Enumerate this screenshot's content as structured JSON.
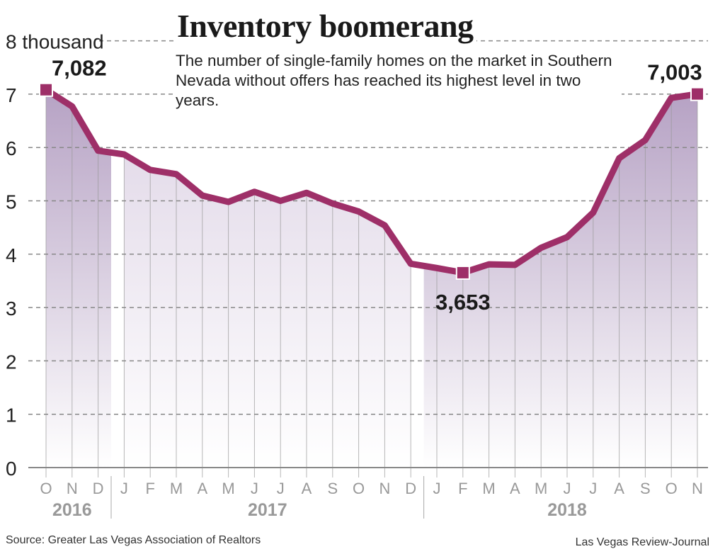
{
  "chart_data": {
    "type": "area",
    "title": "Inventory boomerang",
    "subtitle": "The number of single-family homes on the market in Southern Nevada without offers has reached its highest level in two years.",
    "ylabel": "",
    "unit_label": "8 thousand",
    "ylim": [
      0,
      8
    ],
    "yticks": [
      "0",
      "1",
      "2",
      "3",
      "4",
      "5",
      "6",
      "7",
      "8 thousand"
    ],
    "grid": "horizontal dashed",
    "categories": [
      "O",
      "N",
      "D",
      "J",
      "F",
      "M",
      "A",
      "M",
      "J",
      "J",
      "A",
      "S",
      "O",
      "N",
      "D",
      "J",
      "F",
      "M",
      "A",
      "M",
      "J",
      "J",
      "A",
      "S",
      "O",
      "N"
    ],
    "years": [
      {
        "label": "2016",
        "start": 0,
        "end": 2
      },
      {
        "label": "2017",
        "start": 3,
        "end": 14
      },
      {
        "label": "2018",
        "start": 15,
        "end": 25
      }
    ],
    "values": [
      7.082,
      6.77,
      5.94,
      5.87,
      5.58,
      5.5,
      5.1,
      4.98,
      5.17,
      5.0,
      5.15,
      4.95,
      4.8,
      4.54,
      3.82,
      3.74,
      3.653,
      3.81,
      3.8,
      4.12,
      4.32,
      4.78,
      5.8,
      6.14,
      6.93,
      7.003
    ],
    "annotations": [
      {
        "index": 0,
        "label": "7,082"
      },
      {
        "index": 16,
        "label": "3,653"
      },
      {
        "index": 25,
        "label": "7,003"
      }
    ],
    "colors": {
      "line": "#9e2f68",
      "fill_dark": "#b6a2c4",
      "fill_light": "#e4dcea",
      "grid": "#888888"
    }
  },
  "source": "Source:  Greater Las Vegas Association of Realtors",
  "credit": "Las Vegas Review-Journal"
}
